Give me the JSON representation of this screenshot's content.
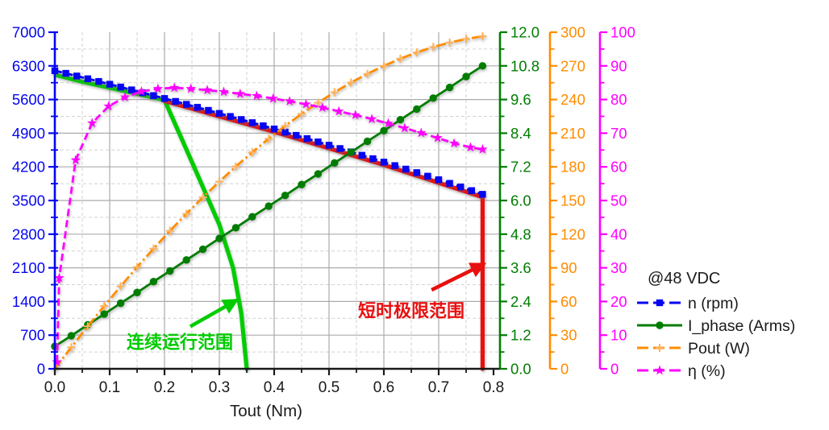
{
  "chart_data": {
    "type": "line",
    "title": "",
    "xlabel": "Tout (Nm)",
    "grid": "major-solid, minor-dashed",
    "legend_position": "right",
    "x_axis": {
      "range": [
        0,
        0.8
      ],
      "major_tick": 0.1,
      "minor_tick": 0.05,
      "tick_labels": [
        "0.0",
        "0.1",
        "0.2",
        "0.3",
        "0.4",
        "0.5",
        "0.6",
        "0.7",
        "0.8"
      ],
      "color": "#1a1a1a"
    },
    "axes": [
      {
        "id": "n",
        "title": "n (rpm)",
        "side": "left",
        "color": "#0505F0",
        "range": [
          0,
          7000
        ],
        "major_tick": 700,
        "minor_tick": 350,
        "decimals": 0,
        "tick_labels": [
          "0",
          "700",
          "1400",
          "2100",
          "2800",
          "3500",
          "4200",
          "4900",
          "5600",
          "6300",
          "7000"
        ]
      },
      {
        "id": "iphase",
        "title": "I_phase (Arms)",
        "side": "right-1",
        "color": "#007D00",
        "range": [
          0,
          12
        ],
        "major_tick": 1.2,
        "minor_tick": 0.6,
        "decimals": 1,
        "tick_labels": [
          "0.0",
          "1.2",
          "2.4",
          "3.6",
          "4.8",
          "6.0",
          "7.2",
          "8.4",
          "9.6",
          "10.8",
          "12.0"
        ]
      },
      {
        "id": "pout",
        "title": "Pout (W)",
        "side": "right-2",
        "color": "#FF8C00",
        "range": [
          0,
          300
        ],
        "major_tick": 30,
        "minor_tick": 15,
        "decimals": 0,
        "tick_labels": [
          "0",
          "30",
          "60",
          "90",
          "120",
          "150",
          "180",
          "210",
          "240",
          "270",
          "300"
        ]
      },
      {
        "id": "eta",
        "title": "η (%)",
        "side": "right-3",
        "color": "#FF00FF",
        "range": [
          0,
          100
        ],
        "major_tick": 10,
        "minor_tick": 5,
        "decimals": 0,
        "tick_labels": [
          "0",
          "10",
          "20",
          "30",
          "40",
          "50",
          "60",
          "70",
          "80",
          "90",
          "100"
        ]
      }
    ],
    "series": [
      {
        "name": "n (rpm)",
        "axis": "n",
        "color": "#0505F0",
        "dash": "9 5",
        "marker": "square",
        "line_width": 2.8,
        "points": [
          [
            0,
            6200
          ],
          [
            0.02,
            6145
          ],
          [
            0.04,
            6089
          ],
          [
            0.06,
            6032
          ],
          [
            0.08,
            5976
          ],
          [
            0.1,
            5918
          ],
          [
            0.12,
            5860
          ],
          [
            0.14,
            5801
          ],
          [
            0.16,
            5742
          ],
          [
            0.18,
            5682
          ],
          [
            0.2,
            5622
          ],
          [
            0.22,
            5561
          ],
          [
            0.24,
            5500
          ],
          [
            0.26,
            5438
          ],
          [
            0.28,
            5375
          ],
          [
            0.3,
            5312
          ],
          [
            0.32,
            5248
          ],
          [
            0.34,
            5184
          ],
          [
            0.36,
            5119
          ],
          [
            0.38,
            5054
          ],
          [
            0.4,
            4988
          ],
          [
            0.42,
            4922
          ],
          [
            0.44,
            4855
          ],
          [
            0.46,
            4787
          ],
          [
            0.48,
            4719
          ],
          [
            0.5,
            4650
          ],
          [
            0.52,
            4581
          ],
          [
            0.54,
            4511
          ],
          [
            0.56,
            4441
          ],
          [
            0.58,
            4370
          ],
          [
            0.6,
            4298
          ],
          [
            0.62,
            4226
          ],
          [
            0.64,
            4153
          ],
          [
            0.66,
            4080
          ],
          [
            0.68,
            4006
          ],
          [
            0.7,
            3932
          ],
          [
            0.72,
            3857
          ],
          [
            0.74,
            3782
          ],
          [
            0.76,
            3706
          ],
          [
            0.78,
            3629
          ]
        ]
      },
      {
        "name": "I_phase (Arms)",
        "axis": "iphase",
        "color": "#007D00",
        "dash": null,
        "marker": "circle",
        "line_width": 2.8,
        "points": [
          [
            0,
            0.8
          ],
          [
            0.03,
            1.18
          ],
          [
            0.06,
            1.57
          ],
          [
            0.09,
            1.95
          ],
          [
            0.12,
            2.34
          ],
          [
            0.15,
            2.72
          ],
          [
            0.18,
            3.11
          ],
          [
            0.21,
            3.49
          ],
          [
            0.24,
            3.88
          ],
          [
            0.27,
            4.26
          ],
          [
            0.3,
            4.65
          ],
          [
            0.33,
            5.03
          ],
          [
            0.36,
            5.42
          ],
          [
            0.39,
            5.8
          ],
          [
            0.42,
            6.18
          ],
          [
            0.45,
            6.57
          ],
          [
            0.48,
            6.95
          ],
          [
            0.51,
            7.34
          ],
          [
            0.54,
            7.72
          ],
          [
            0.57,
            8.11
          ],
          [
            0.6,
            8.49
          ],
          [
            0.63,
            8.88
          ],
          [
            0.66,
            9.26
          ],
          [
            0.69,
            9.65
          ],
          [
            0.72,
            10.03
          ],
          [
            0.75,
            10.42
          ],
          [
            0.78,
            10.8
          ]
        ]
      },
      {
        "name": "Pout (W)",
        "axis": "pout",
        "color": "#FF8C00",
        "dash": "12 4 2.5 4",
        "marker": "plus",
        "marker_color": "#FFB35C",
        "line_width": 2.8,
        "points": [
          [
            0,
            0
          ],
          [
            0.03,
            19.2
          ],
          [
            0.06,
            37.9
          ],
          [
            0.09,
            56.0
          ],
          [
            0.12,
            73.6
          ],
          [
            0.15,
            90.7
          ],
          [
            0.18,
            107.1
          ],
          [
            0.21,
            123.0
          ],
          [
            0.24,
            138.2
          ],
          [
            0.27,
            152.9
          ],
          [
            0.3,
            166.9
          ],
          [
            0.33,
            180.3
          ],
          [
            0.36,
            193.0
          ],
          [
            0.39,
            205.1
          ],
          [
            0.42,
            216.5
          ],
          [
            0.45,
            227.2
          ],
          [
            0.48,
            237.2
          ],
          [
            0.51,
            246.5
          ],
          [
            0.54,
            255.1
          ],
          [
            0.57,
            262.9
          ],
          [
            0.6,
            270.0
          ],
          [
            0.63,
            276.4
          ],
          [
            0.66,
            282.0
          ],
          [
            0.69,
            286.8
          ],
          [
            0.72,
            290.8
          ],
          [
            0.75,
            294.0
          ],
          [
            0.78,
            296.4
          ]
        ]
      },
      {
        "name": "η (%)",
        "axis": "eta",
        "color": "#FF00FF",
        "dash": "9 5",
        "marker": "star",
        "line_width": 2.8,
        "points": [
          [
            0.004,
            2
          ],
          [
            0.008,
            27
          ],
          [
            0.038,
            62
          ],
          [
            0.068,
            73
          ],
          [
            0.098,
            78
          ],
          [
            0.128,
            80.7
          ],
          [
            0.158,
            82.4
          ],
          [
            0.188,
            83.2
          ],
          [
            0.218,
            83.5
          ],
          [
            0.248,
            83.2
          ],
          [
            0.278,
            82.8
          ],
          [
            0.308,
            82.3
          ],
          [
            0.338,
            81.7
          ],
          [
            0.368,
            81.1
          ],
          [
            0.398,
            80.3
          ],
          [
            0.428,
            79.5
          ],
          [
            0.458,
            78.6
          ],
          [
            0.488,
            77.6
          ],
          [
            0.518,
            76.5
          ],
          [
            0.548,
            75.4
          ],
          [
            0.578,
            74.2
          ],
          [
            0.608,
            72.9
          ],
          [
            0.638,
            71.5
          ],
          [
            0.668,
            70.1
          ],
          [
            0.698,
            68.6
          ],
          [
            0.728,
            67.0
          ],
          [
            0.758,
            65.8
          ],
          [
            0.78,
            65.2
          ]
        ]
      }
    ],
    "boundaries": [
      {
        "id": "continuous-operating-range",
        "name": "连续运行范围",
        "axis": "n",
        "color": "#00CC00",
        "line_width": 5.2,
        "points": [
          [
            0.002,
            6110
          ],
          [
            0.05,
            5970
          ],
          [
            0.1,
            5845
          ],
          [
            0.15,
            5720
          ],
          [
            0.2,
            5590
          ],
          [
            0.25,
            4300
          ],
          [
            0.3,
            3000
          ],
          [
            0.325,
            2100
          ],
          [
            0.34,
            1150
          ],
          [
            0.35,
            0
          ]
        ]
      },
      {
        "id": "short-time-limit-range",
        "name": "短时极限范围",
        "axis": "n",
        "color": "#E81010",
        "line_width": 5.2,
        "points": [
          [
            0.2,
            5570
          ],
          [
            0.4,
            4930
          ],
          [
            0.6,
            4240
          ],
          [
            0.78,
            3570
          ],
          [
            0.78,
            0
          ]
        ]
      }
    ],
    "annotations": [
      {
        "text": "连续运行范围",
        "color": "#00CC00",
        "text_at": [
          0.228,
          560
        ],
        "arrow_from": [
          0.247,
          880
        ],
        "arrow_to": [
          0.332,
          1430
        ]
      },
      {
        "text": "短时极限范围",
        "color": "#E81010",
        "text_at": [
          0.65,
          1210
        ],
        "arrow_from": [
          0.687,
          1640
        ],
        "arrow_to": [
          0.783,
          2180
        ]
      }
    ],
    "legend": {
      "title": "@48 VDC",
      "items": [
        "n (rpm)",
        "I_phase (Arms)",
        "Pout (W)",
        "η (%)"
      ]
    }
  }
}
